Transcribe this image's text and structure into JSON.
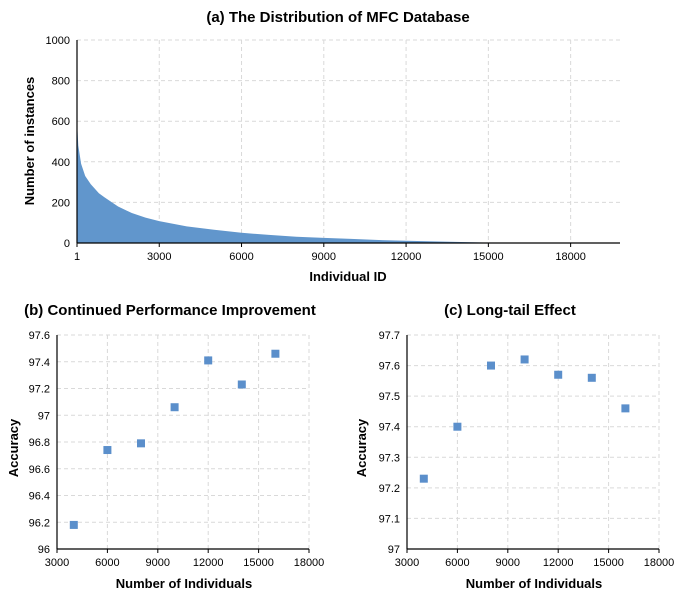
{
  "chart_data": [
    {
      "type": "area",
      "title": "(a) The Distribution of MFC Database",
      "xlabel": "Individual ID",
      "ylabel": "Number of instances",
      "xlim": [
        1,
        19800
      ],
      "ylim": [
        0,
        1000
      ],
      "xticks": [
        "1",
        "3000",
        "6000",
        "9000",
        "12000",
        "15000",
        "18000"
      ],
      "xtick_values": [
        1,
        3000,
        6000,
        9000,
        12000,
        15000,
        18000
      ],
      "yticks": [
        0,
        200,
        400,
        600,
        800,
        1000
      ],
      "grid": true,
      "series": [
        {
          "x": [
            1,
            50,
            150,
            300,
            500,
            800,
            1000,
            1500,
            2000,
            2500,
            3000,
            4000,
            5000,
            6000,
            7000,
            8000,
            9000,
            10000,
            11000,
            12000,
            13000,
            14000,
            15000,
            15500,
            16000,
            17000,
            18000,
            19800
          ],
          "values": [
            600,
            480,
            390,
            330,
            290,
            245,
            225,
            180,
            148,
            125,
            108,
            82,
            65,
            50,
            40,
            31,
            25,
            20,
            15,
            11,
            8,
            5,
            2,
            1,
            0.5,
            0.3,
            0.2,
            0
          ]
        }
      ]
    },
    {
      "type": "scatter",
      "title": "(b) Continued Performance Improvement",
      "xlabel": "Number of Individuals",
      "ylabel": "Accuracy",
      "xlim": [
        3000,
        18000
      ],
      "ylim": [
        96,
        97.6
      ],
      "xticks": [
        3000,
        6000,
        9000,
        12000,
        15000,
        18000
      ],
      "yticks": [
        "96",
        "96.2",
        "96.4",
        "96.6",
        "96.8",
        "97",
        "97.2",
        "97.4",
        "97.6"
      ],
      "ytick_values": [
        96,
        96.2,
        96.4,
        96.6,
        96.8,
        97,
        97.2,
        97.4,
        97.6
      ],
      "grid": true,
      "series": [
        {
          "x": [
            4000,
            6000,
            8000,
            10000,
            12000,
            14000,
            16000
          ],
          "values": [
            96.18,
            96.74,
            96.79,
            97.06,
            97.41,
            97.23,
            97.46
          ]
        }
      ]
    },
    {
      "type": "scatter",
      "title": "(c) Long-tail Effect",
      "xlabel": "Number of Individuals",
      "ylabel": "Accuracy",
      "xlim": [
        3000,
        18000
      ],
      "ylim": [
        97,
        97.7
      ],
      "xticks": [
        3000,
        6000,
        9000,
        12000,
        15000,
        18000
      ],
      "yticks": [
        "97",
        "97.1",
        "97.2",
        "97.3",
        "97.4",
        "97.5",
        "97.6",
        "97.7"
      ],
      "ytick_values": [
        97,
        97.1,
        97.2,
        97.3,
        97.4,
        97.5,
        97.6,
        97.7
      ],
      "grid": true,
      "series": [
        {
          "x": [
            4000,
            6000,
            8000,
            10000,
            12000,
            14000,
            16000
          ],
          "values": [
            97.23,
            97.4,
            97.6,
            97.62,
            97.57,
            97.56,
            97.46
          ]
        }
      ]
    }
  ],
  "colors": {
    "series": "#5b8fcb",
    "area": "#6196cc",
    "grid": "#d9d9d9"
  }
}
